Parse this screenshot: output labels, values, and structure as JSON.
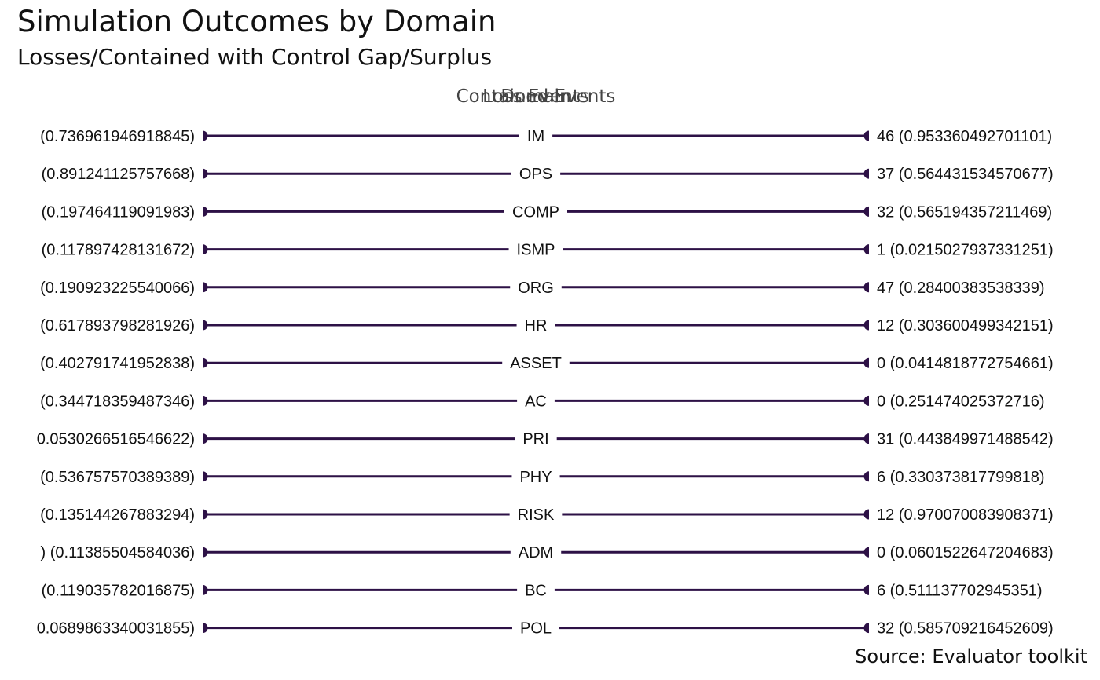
{
  "chart_data": {
    "type": "dumbbell",
    "title": "Simulation Outcomes by Domain",
    "subtitle": "Losses/Contained with Control Gap/Surplus",
    "caption": "Source: Evaluator toolkit",
    "column_headers": [
      "Loss Events",
      "Domain",
      "Contained Events"
    ],
    "line_color": "#2d1146",
    "rows": [
      {
        "domain": "IM",
        "left_label": "(0.736961946918845)",
        "right_label": "46 (0.953360492701101)"
      },
      {
        "domain": "OPS",
        "left_label": "(0.891241125757668)",
        "right_label": "37 (0.564431534570677)"
      },
      {
        "domain": "COMP",
        "left_label": "(0.197464119091983)",
        "right_label": "32 (0.565194357211469)"
      },
      {
        "domain": "ISMP",
        "left_label": "(0.117897428131672)",
        "right_label": "1 (0.0215027937331251)"
      },
      {
        "domain": "ORG",
        "left_label": "(0.190923225540066)",
        "right_label": "47 (0.28400383538339)"
      },
      {
        "domain": "HR",
        "left_label": "(0.617893798281926)",
        "right_label": "12 (0.303600499342151)"
      },
      {
        "domain": "ASSET",
        "left_label": "(0.402791741952838)",
        "right_label": "0 (0.0414818772754661)"
      },
      {
        "domain": "AC",
        "left_label": "(0.344718359487346)",
        "right_label": "0 (0.251474025372716)"
      },
      {
        "domain": "PRI",
        "left_label": "0.0530266516546622)",
        "right_label": "31 (0.443849971488542)"
      },
      {
        "domain": "PHY",
        "left_label": "(0.536757570389389)",
        "right_label": "6 (0.330373817799818)"
      },
      {
        "domain": "RISK",
        "left_label": "(0.135144267883294)",
        "right_label": "12 (0.970070083908371)"
      },
      {
        "domain": "ADM",
        "left_label": ") (0.11385504584036)",
        "right_label": "0 (0.0601522647204683)"
      },
      {
        "domain": "BC",
        "left_label": "(0.119035782016875)",
        "right_label": "6 (0.511137702945351)"
      },
      {
        "domain": "POL",
        "left_label": "0.0689863340031855)",
        "right_label": "32 (0.585709216452609)"
      }
    ]
  }
}
